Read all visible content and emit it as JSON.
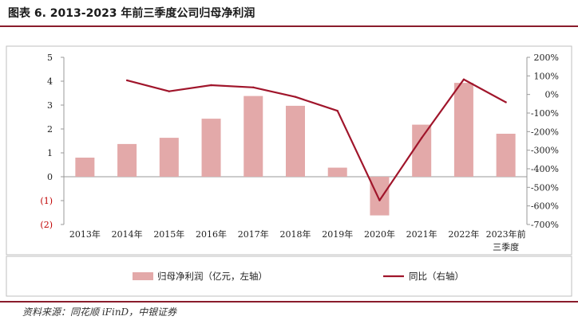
{
  "figure": {
    "title": "图表 6. 2013-2023 年前三季度公司归母净利润",
    "source": "资料来源：同花顺 iFinD，中银证券"
  },
  "chart_data": {
    "type": "bar",
    "categories": [
      "2013年",
      "2014年",
      "2015年",
      "2016年",
      "2017年",
      "2018年",
      "2019年",
      "2020年",
      "2021年",
      "2022年",
      "2023年前三季度"
    ],
    "left_axis": {
      "ylim": [
        -2,
        5
      ],
      "ticks": [
        5,
        4,
        3,
        2,
        1,
        0,
        -1,
        -2
      ],
      "tick_labels": [
        "5",
        "4",
        "3",
        "2",
        "1",
        "0",
        "(1)",
        "(2)"
      ]
    },
    "right_axis": {
      "ylim": [
        -700,
        200
      ],
      "ticks": [
        200,
        100,
        0,
        -100,
        -200,
        -300,
        -400,
        -500,
        -600,
        -700
      ],
      "tick_labels": [
        "200%",
        "100%",
        "0%",
        "-100%",
        "-200%",
        "-300%",
        "-400%",
        "-500%",
        "-600%",
        "-700%"
      ]
    },
    "series": [
      {
        "name": "归母净利润（亿元，左轴）",
        "type": "bar",
        "axis": "left",
        "color": "#e3a9a9",
        "values": [
          0.8,
          1.37,
          1.63,
          2.43,
          3.38,
          2.97,
          0.38,
          -1.62,
          2.18,
          3.93,
          1.8
        ]
      },
      {
        "name": "同比（右轴）",
        "type": "line",
        "axis": "right",
        "color": "#a0152b",
        "values": [
          null,
          76,
          17,
          50,
          38,
          -13,
          -88,
          -570,
          -234,
          81,
          -42
        ]
      }
    ],
    "legend_position": "bottom",
    "grid": false
  }
}
